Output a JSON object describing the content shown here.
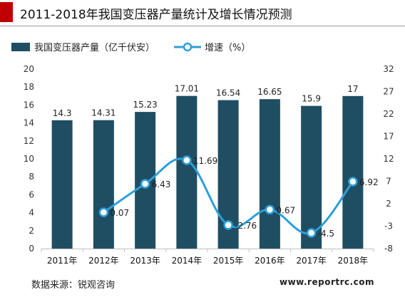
{
  "header": {
    "title": "2011-2018年我国变压器产量统计及增长情况预测"
  },
  "footer": {
    "source": "数据来源：锐观咨询",
    "website": "www.reportrc.com"
  },
  "colors": {
    "accent": "#c00000",
    "bar": "#1f4e63",
    "line": "#2e9fd8"
  },
  "chart_data": {
    "type": "bar",
    "categories": [
      "2011年",
      "2012年",
      "2013年",
      "2014年",
      "2015年",
      "2016年",
      "2017年",
      "2018年"
    ],
    "series": [
      {
        "name": "我国变压器产量（亿千伏安）",
        "type": "bar",
        "axis": "left",
        "values": [
          14.3,
          14.31,
          15.23,
          17.01,
          16.54,
          16.65,
          15.9,
          17
        ],
        "labels": [
          "14.3",
          "14.31",
          "15.23",
          "17.01",
          "16.54",
          "16.65",
          "15.9",
          "17"
        ]
      },
      {
        "name": "增速（%）",
        "type": "line",
        "axis": "right",
        "values": [
          null,
          0.07,
          6.43,
          11.69,
          -2.76,
          0.67,
          -4.5,
          6.92
        ],
        "labels": [
          "",
          "0.07",
          "6.43",
          "11.69",
          "-2.76",
          "0.67",
          "-4.5",
          "6.92"
        ]
      }
    ],
    "y_left": {
      "min": 0,
      "max": 20,
      "ticks": [
        "0",
        "2",
        "4",
        "6",
        "8",
        "10",
        "12",
        "14",
        "16",
        "18",
        "20"
      ]
    },
    "y_right": {
      "min": -8,
      "max": 32,
      "ticks": [
        "-8",
        "-3",
        "2",
        "7",
        "12",
        "17",
        "22",
        "27",
        "32"
      ]
    },
    "legend_position": "top-left",
    "grid": false
  }
}
